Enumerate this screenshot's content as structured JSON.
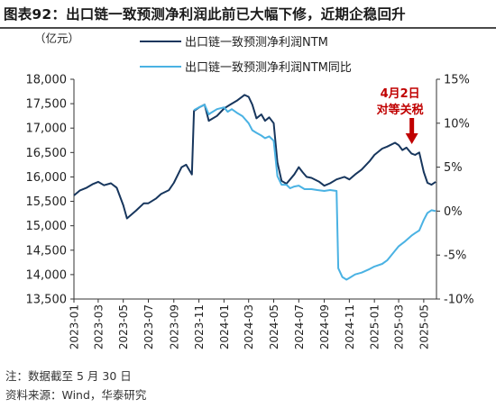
{
  "figure": {
    "label": "图表92：",
    "title": "出口链一致预测净利润此前已大幅下修，近期企稳回升"
  },
  "notes": {
    "note": "注：数据截至 5 月 30 日",
    "source": "资料来源：Wind，华泰研究"
  },
  "chart_data": {
    "type": "line",
    "y_unit_label": "（亿元）",
    "left_axis": {
      "min": 13500,
      "max": 18000,
      "step": 500,
      "ticks": [
        "13,500",
        "14,000",
        "14,500",
        "15,000",
        "15,500",
        "16,000",
        "16,500",
        "17,000",
        "17,500",
        "18,000"
      ]
    },
    "right_axis": {
      "min": -10,
      "max": 15,
      "step": 5,
      "ticks": [
        "-10%",
        "-5%",
        "0%",
        "5%",
        "10%",
        "15%"
      ]
    },
    "x_ticks": [
      "2023-01",
      "2023-03",
      "2023-05",
      "2023-07",
      "2023-09",
      "2023-11",
      "2024-01",
      "2024-03",
      "2024-05",
      "2024-07",
      "2024-09",
      "2024-11",
      "2025-01",
      "2025-03",
      "2025-05"
    ],
    "x_range": [
      "2023-01",
      "2025-06"
    ],
    "grid": false,
    "legend_position": "top",
    "annotation": {
      "line1": "4月2日",
      "line2": "对等关税",
      "color": "#c00000",
      "at": "2025-04-02"
    },
    "series": [
      {
        "name": "出口链一致预测净利润NTM",
        "axis": "left",
        "color": "#17365d",
        "points": [
          [
            "2023-01",
            15620
          ],
          [
            "2023-01-15",
            15720
          ],
          [
            "2023-02",
            15780
          ],
          [
            "2023-02-15",
            15850
          ],
          [
            "2023-03",
            15900
          ],
          [
            "2023-03-15",
            15830
          ],
          [
            "2023-04",
            15870
          ],
          [
            "2023-04-15",
            15780
          ],
          [
            "2023-05",
            15420
          ],
          [
            "2023-05-10",
            15150
          ],
          [
            "2023-06",
            15310
          ],
          [
            "2023-06-20",
            15460
          ],
          [
            "2023-07",
            15460
          ],
          [
            "2023-07-20",
            15560
          ],
          [
            "2023-08",
            15650
          ],
          [
            "2023-08-20",
            15730
          ],
          [
            "2023-09",
            15880
          ],
          [
            "2023-09-20",
            16200
          ],
          [
            "2023-10",
            16250
          ],
          [
            "2023-10-15",
            16050
          ],
          [
            "2023-10-20",
            17350
          ],
          [
            "2023-11",
            17420
          ],
          [
            "2023-11-15",
            17480
          ],
          [
            "2023-11-25",
            17150
          ],
          [
            "2023-12",
            17180
          ],
          [
            "2023-12-15",
            17250
          ],
          [
            "2024-01",
            17400
          ],
          [
            "2024-01-20",
            17500
          ],
          [
            "2024-02",
            17560
          ],
          [
            "2024-02-20",
            17680
          ],
          [
            "2024-03",
            17640
          ],
          [
            "2024-03-10",
            17480
          ],
          [
            "2024-03-20",
            17200
          ],
          [
            "2024-04",
            17280
          ],
          [
            "2024-04-10",
            17150
          ],
          [
            "2024-04-20",
            17220
          ],
          [
            "2024-05",
            17100
          ],
          [
            "2024-05-10",
            16300
          ],
          [
            "2024-05-20",
            15920
          ],
          [
            "2024-06",
            15860
          ],
          [
            "2024-06-10",
            15950
          ],
          [
            "2024-06-20",
            16050
          ],
          [
            "2024-07",
            16200
          ],
          [
            "2024-07-10",
            16100
          ],
          [
            "2024-07-20",
            16000
          ],
          [
            "2024-08",
            15980
          ],
          [
            "2024-08-20",
            15900
          ],
          [
            "2024-09",
            15820
          ],
          [
            "2024-09-15",
            15870
          ],
          [
            "2024-10",
            15950
          ],
          [
            "2024-10-20",
            16000
          ],
          [
            "2024-11",
            15950
          ],
          [
            "2024-11-15",
            16050
          ],
          [
            "2024-12",
            16150
          ],
          [
            "2024-12-20",
            16320
          ],
          [
            "2025-01",
            16450
          ],
          [
            "2025-01-20",
            16580
          ],
          [
            "2025-02",
            16620
          ],
          [
            "2025-02-20",
            16700
          ],
          [
            "2025-03",
            16650
          ],
          [
            "2025-03-10",
            16550
          ],
          [
            "2025-03-20",
            16600
          ],
          [
            "2025-04",
            16480
          ],
          [
            "2025-04-10",
            16450
          ],
          [
            "2025-04-20",
            16500
          ],
          [
            "2025-05",
            16100
          ],
          [
            "2025-05-10",
            15880
          ],
          [
            "2025-05-20",
            15840
          ],
          [
            "2025-05-30",
            15900
          ]
        ]
      },
      {
        "name": "出口链一致预测净利润NTM同比",
        "axis": "right",
        "color": "#4ab2e3",
        "points": [
          [
            "2023-10-20",
            11.5
          ],
          [
            "2023-11",
            11.8
          ],
          [
            "2023-11-15",
            12.1
          ],
          [
            "2023-11-25",
            11.0
          ],
          [
            "2023-12",
            11.2
          ],
          [
            "2023-12-15",
            11.6
          ],
          [
            "2024-01",
            11.8
          ],
          [
            "2024-01-10",
            11.3
          ],
          [
            "2024-01-20",
            11.6
          ],
          [
            "2024-02",
            11.2
          ],
          [
            "2024-02-15",
            10.8
          ],
          [
            "2024-03",
            10.0
          ],
          [
            "2024-03-10",
            9.2
          ],
          [
            "2024-03-20",
            8.9
          ],
          [
            "2024-04",
            8.6
          ],
          [
            "2024-04-10",
            8.3
          ],
          [
            "2024-04-20",
            8.5
          ],
          [
            "2024-05",
            8.0
          ],
          [
            "2024-05-10",
            4.0
          ],
          [
            "2024-05-20",
            3.0
          ],
          [
            "2024-06",
            3.0
          ],
          [
            "2024-06-10",
            2.6
          ],
          [
            "2024-06-20",
            2.8
          ],
          [
            "2024-07",
            2.9
          ],
          [
            "2024-07-15",
            2.5
          ],
          [
            "2024-08",
            2.5
          ],
          [
            "2024-08-15",
            2.4
          ],
          [
            "2024-09",
            2.3
          ],
          [
            "2024-09-15",
            2.4
          ],
          [
            "2024-10",
            2.3
          ],
          [
            "2024-10-05",
            -6.5
          ],
          [
            "2024-10-15",
            -7.5
          ],
          [
            "2024-10-25",
            -7.8
          ],
          [
            "2024-11",
            -7.6
          ],
          [
            "2024-11-15",
            -7.2
          ],
          [
            "2024-12",
            -7.0
          ],
          [
            "2024-12-20",
            -6.6
          ],
          [
            "2025-01",
            -6.3
          ],
          [
            "2025-01-20",
            -6.0
          ],
          [
            "2025-02",
            -5.6
          ],
          [
            "2025-02-15",
            -4.8
          ],
          [
            "2025-03",
            -4.0
          ],
          [
            "2025-03-15",
            -3.5
          ],
          [
            "2025-04",
            -2.8
          ],
          [
            "2025-04-10",
            -2.5
          ],
          [
            "2025-04-20",
            -2.2
          ],
          [
            "2025-05",
            -1.0
          ],
          [
            "2025-05-10",
            -0.2
          ],
          [
            "2025-05-20",
            0.1
          ],
          [
            "2025-05-30",
            0.0
          ]
        ]
      }
    ]
  }
}
